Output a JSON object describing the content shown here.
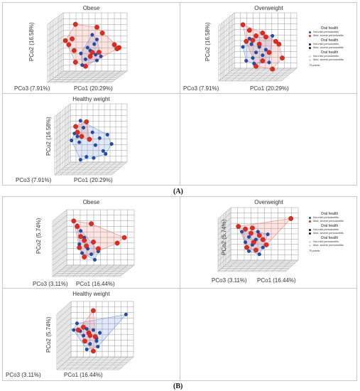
{
  "colors": {
    "normal": "#1f4eb0",
    "severe": "#e02b20",
    "normal_hull": "#5b87d6",
    "severe_hull": "#ef6b60",
    "grid": "#9a9a9a",
    "black": "#111111",
    "light": "#d9d9d9"
  },
  "labels": {
    "fig_a": "(A)",
    "fig_b": "(B)"
  },
  "panels": [
    {
      "id": "A-obese",
      "title": "Obese",
      "xlabel": "PCo1 (20.29%)",
      "zlabel": "PCo3 (7.91%)",
      "ylabel": "PCo2 (16.58%)",
      "scatter": {
        "normal": [
          [
            0.55,
            0.72
          ],
          [
            0.62,
            0.64
          ],
          [
            0.58,
            0.56
          ],
          [
            0.48,
            0.5
          ],
          [
            0.52,
            0.45
          ],
          [
            0.38,
            0.4
          ],
          [
            0.45,
            0.3
          ],
          [
            0.6,
            0.38
          ],
          [
            0.68,
            0.35
          ],
          [
            0.4,
            0.2
          ],
          [
            0.62,
            0.28
          ]
        ],
        "severe": [
          [
            0.3,
            0.9
          ],
          [
            0.62,
            0.85
          ],
          [
            0.7,
            0.75
          ],
          [
            0.15,
            0.62
          ],
          [
            0.25,
            0.65
          ],
          [
            0.2,
            0.55
          ],
          [
            0.28,
            0.45
          ],
          [
            0.55,
            0.42
          ],
          [
            0.65,
            0.42
          ],
          [
            0.52,
            0.35
          ],
          [
            0.88,
            0.55
          ],
          [
            0.95,
            0.5
          ],
          [
            0.92,
            0.48
          ],
          [
            0.3,
            0.25
          ],
          [
            0.45,
            0.18
          ]
        ]
      }
    },
    {
      "id": "A-overweight",
      "title": "Overweight",
      "xlabel": "PCo1 (20.29%)",
      "zlabel": "PCo3 (7.91%)",
      "ylabel": "PCo2 (16.58%)",
      "scatter": {
        "normal": [
          [
            0.35,
            0.65
          ],
          [
            0.38,
            0.55
          ],
          [
            0.5,
            0.5
          ],
          [
            0.45,
            0.4
          ],
          [
            0.55,
            0.35
          ],
          [
            0.4,
            0.3
          ],
          [
            0.6,
            0.45
          ],
          [
            0.3,
            0.25
          ],
          [
            0.42,
            0.2
          ],
          [
            0.65,
            0.22
          ],
          [
            0.7,
            0.7
          ],
          [
            0.25,
            0.5
          ]
        ],
        "severe": [
          [
            0.25,
            0.9
          ],
          [
            0.35,
            0.8
          ],
          [
            0.45,
            0.7
          ],
          [
            0.3,
            0.6
          ],
          [
            0.4,
            0.62
          ],
          [
            0.55,
            0.75
          ],
          [
            0.6,
            0.68
          ],
          [
            0.75,
            0.6
          ],
          [
            0.8,
            0.55
          ],
          [
            0.5,
            0.55
          ],
          [
            0.65,
            0.4
          ],
          [
            0.55,
            0.25
          ],
          [
            0.85,
            0.3
          ],
          [
            0.45,
            0.15
          ],
          [
            0.7,
            0.1
          ]
        ]
      },
      "legend": {
        "groups": [
          {
            "title": "Oral health",
            "items": [
              {
                "label": "Nor-mild periodontitis",
                "color": "#1f4eb0"
              },
              {
                "label": "Mod- severe periodontitis",
                "color": "#e02b20"
              }
            ]
          },
          {
            "title": "Oral health",
            "items": [
              {
                "label": "Nor-mild periodontitis",
                "color": "#111111"
              },
              {
                "label": "Mod- severe periodontitis",
                "color": "#111111"
              }
            ]
          },
          {
            "title": "Oral health",
            "items": [
              {
                "label": "Nor-mild periodontitis",
                "color": "#d9d9d9"
              },
              {
                "label": "Mod- severe periodontitis",
                "color": "#d9d9d9"
              }
            ]
          }
        ],
        "points": "75 points"
      }
    },
    {
      "id": "A-healthy",
      "title": "Healthy weight",
      "xlabel": "PCo1 (20.29%)",
      "zlabel": "PCo3 (7.91%)",
      "ylabel": "PCo2 (16.58%)",
      "scatter": {
        "normal": [
          [
            0.3,
            0.82
          ],
          [
            0.35,
            0.7
          ],
          [
            0.2,
            0.6
          ],
          [
            0.25,
            0.55
          ],
          [
            0.15,
            0.48
          ],
          [
            0.28,
            0.45
          ],
          [
            0.5,
            0.62
          ],
          [
            0.62,
            0.52
          ],
          [
            0.75,
            0.58
          ],
          [
            0.55,
            0.4
          ],
          [
            0.68,
            0.3
          ],
          [
            0.72,
            0.25
          ],
          [
            0.4,
            0.2
          ],
          [
            0.52,
            0.18
          ],
          [
            0.3,
            0.15
          ],
          [
            0.82,
            0.42
          ]
        ],
        "severe": [
          [
            0.22,
            0.72
          ],
          [
            0.25,
            0.62
          ],
          [
            0.32,
            0.55
          ],
          [
            0.4,
            0.8
          ],
          [
            0.45,
            0.5
          ]
        ]
      }
    },
    {
      "id": "B-obese",
      "title": "Obese",
      "xlabel": "PCo1 (16.44%)",
      "zlabel": "PCo3 (3.11%)",
      "ylabel": "PCo2 (5.74%)",
      "scatter": {
        "normal": [
          [
            0.3,
            0.72
          ],
          [
            0.35,
            0.6
          ],
          [
            0.28,
            0.48
          ],
          [
            0.4,
            0.4
          ],
          [
            0.45,
            0.3
          ],
          [
            0.5,
            0.2
          ],
          [
            0.55,
            0.35
          ],
          [
            0.32,
            0.32
          ],
          [
            0.25,
            0.82
          ]
        ],
        "severe": [
          [
            0.2,
            0.9
          ],
          [
            0.25,
            0.8
          ],
          [
            0.3,
            0.62
          ],
          [
            0.35,
            0.55
          ],
          [
            0.28,
            0.42
          ],
          [
            0.38,
            0.45
          ],
          [
            0.48,
            0.52
          ],
          [
            0.55,
            0.4
          ],
          [
            0.92,
            0.6
          ],
          [
            0.82,
            0.5
          ],
          [
            0.45,
            0.85
          ],
          [
            0.35,
            0.25
          ]
        ]
      }
    },
    {
      "id": "B-overweight",
      "title": "Overweight",
      "xlabel": "PCo1 (16.44%)",
      "zlabel": "PCo3 (3.11%)",
      "ylabel": "PCo2 (5.74%)",
      "scatter": {
        "normal": [
          [
            0.25,
            0.65
          ],
          [
            0.35,
            0.55
          ],
          [
            0.45,
            0.5
          ],
          [
            0.3,
            0.45
          ],
          [
            0.4,
            0.4
          ],
          [
            0.55,
            0.35
          ],
          [
            0.35,
            0.28
          ],
          [
            0.5,
            0.22
          ],
          [
            0.62,
            0.6
          ],
          [
            0.48,
            0.65
          ]
        ],
        "severe": [
          [
            0.2,
            0.75
          ],
          [
            0.3,
            0.7
          ],
          [
            0.4,
            0.72
          ],
          [
            0.38,
            0.62
          ],
          [
            0.5,
            0.58
          ],
          [
            0.55,
            0.5
          ],
          [
            0.42,
            0.45
          ],
          [
            0.6,
            0.4
          ],
          [
            0.95,
            0.9
          ],
          [
            0.45,
            0.3
          ],
          [
            0.32,
            0.35
          ]
        ]
      },
      "legend": {
        "groups": [
          {
            "title": "Oral health",
            "items": [
              {
                "label": "Nor-mild periodontitis",
                "color": "#1f4eb0"
              },
              {
                "label": "Mod- severe periodontitis",
                "color": "#e02b20"
              }
            ]
          },
          {
            "title": "Oral health",
            "items": [
              {
                "label": "Nor-mild periodontitis",
                "color": "#111111"
              },
              {
                "label": "Mod- severe periodontitis",
                "color": "#111111"
              }
            ]
          },
          {
            "title": "Oral health",
            "items": [
              {
                "label": "Nor-mild periodontitis",
                "color": "#d9d9d9"
              },
              {
                "label": "Mod- severe periodontitis",
                "color": "#d9d9d9"
              }
            ]
          }
        ],
        "points": "75 points"
      }
    },
    {
      "id": "B-healthy",
      "title": "Healthy weight",
      "xlabel": "PCo1 (16.44%)",
      "zlabel": "PCo3 (3.11%)",
      "ylabel": "PCo2 (5.74%)",
      "scatter": {
        "normal": [
          [
            0.2,
            0.72
          ],
          [
            0.15,
            0.6
          ],
          [
            0.25,
            0.58
          ],
          [
            0.35,
            0.62
          ],
          [
            0.45,
            0.6
          ],
          [
            0.55,
            0.55
          ],
          [
            0.5,
            0.45
          ],
          [
            0.4,
            0.35
          ],
          [
            0.52,
            0.3
          ],
          [
            0.35,
            0.25
          ],
          [
            0.95,
            0.88
          ],
          [
            0.5,
            0.4
          ],
          [
            0.3,
            0.5
          ]
        ],
        "severe": [
          [
            0.45,
            0.95
          ],
          [
            0.3,
            0.65
          ],
          [
            0.38,
            0.55
          ],
          [
            0.4,
            0.5
          ],
          [
            0.48,
            0.48
          ],
          [
            0.45,
            0.22
          ],
          [
            0.32,
            0.4
          ],
          [
            0.22,
            0.6
          ]
        ]
      }
    }
  ]
}
